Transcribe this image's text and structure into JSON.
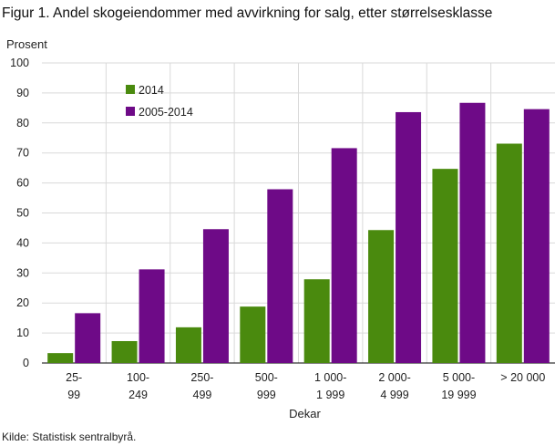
{
  "chart_data": {
    "type": "bar",
    "title": "Figur 1. Andel skogeiendommer med avvirkning for salg, etter størrelsesklasse",
    "ylabel": "Prosent",
    "xlabel": "Dekar",
    "ylim": [
      0,
      100
    ],
    "yticks": [
      0,
      10,
      20,
      30,
      40,
      50,
      60,
      70,
      80,
      90,
      100
    ],
    "grid": true,
    "legend_position": "top-left",
    "categories": [
      [
        "25-",
        "99"
      ],
      [
        "100-",
        "249"
      ],
      [
        "250-",
        "499"
      ],
      [
        "500-",
        "999"
      ],
      [
        "1 000-",
        "1 999"
      ],
      [
        "2 000-",
        "4 999"
      ],
      [
        "5 000-",
        "19 999"
      ],
      [
        "> 20 000"
      ]
    ],
    "series": [
      {
        "name": "2014",
        "color": "#4a8a0e",
        "values": [
          3.3,
          7.3,
          11.9,
          18.8,
          27.9,
          44.3,
          64.7,
          73.1
        ]
      },
      {
        "name": "2005-2014",
        "color": "#6e0a87",
        "values": [
          16.6,
          31.2,
          44.6,
          57.9,
          71.6,
          83.6,
          86.7,
          84.6
        ]
      }
    ]
  },
  "source": "Kilde: Statistisk sentralbyrå."
}
